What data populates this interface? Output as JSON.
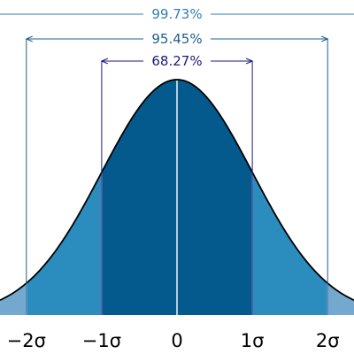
{
  "chart_data": {
    "type": "area",
    "distribution": "normal",
    "mean": 0,
    "std": 1,
    "xlim": [
      -2.35,
      2.35
    ],
    "x_ticks": [
      {
        "value": -2,
        "label": "−2σ"
      },
      {
        "value": -1,
        "label": "−1σ"
      },
      {
        "value": 0,
        "label": "0"
      },
      {
        "value": 1,
        "label": "1σ"
      },
      {
        "value": 2,
        "label": "2σ"
      }
    ],
    "regions": [
      {
        "from": -1,
        "to": 1,
        "color": "#045a8d"
      },
      {
        "from": -2,
        "to": -1,
        "color": "#2b8cbe"
      },
      {
        "from": 1,
        "to": 2,
        "color": "#2b8cbe"
      },
      {
        "from": -3,
        "to": -2,
        "color": "#74a9cf"
      },
      {
        "from": 2,
        "to": 3,
        "color": "#74a9cf"
      }
    ],
    "annotations": [
      {
        "label": "68.27%",
        "from": -1,
        "to": 1,
        "color": "#1a1a80"
      },
      {
        "label": "95.45%",
        "from": -2,
        "to": 2,
        "color": "#1f5f8b"
      },
      {
        "label": "99.73%",
        "from": -3,
        "to": 3,
        "color": "#2f7fb0"
      }
    ],
    "curve_color": "#000000",
    "divider_color": "#ffffff"
  }
}
